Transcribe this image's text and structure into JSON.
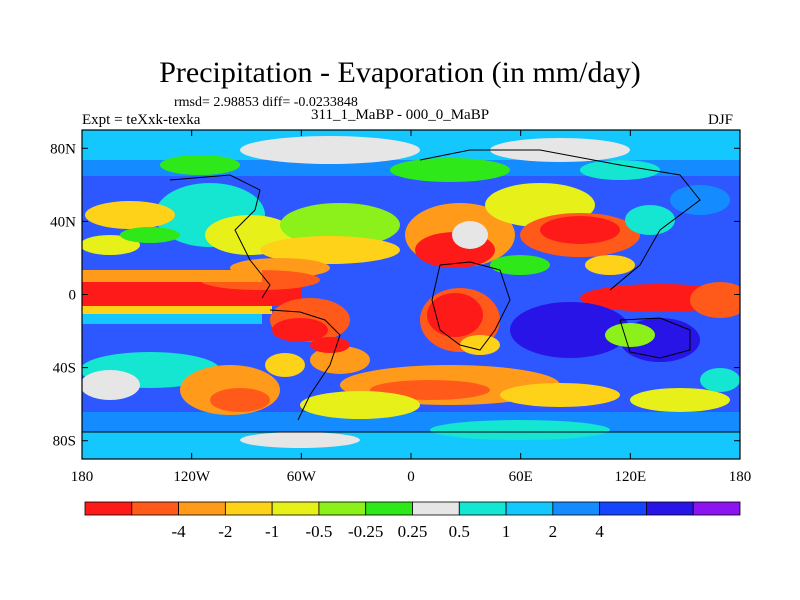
{
  "header": {
    "title": "Precipitation - Evaporation (in mm/day)",
    "stats": "rmsd= 2.98853 diff= -0.0233848",
    "experiment": "Expt = teXxk-texka",
    "subtitle": "311_1_MaBP - 000_0_MaBP",
    "season": "DJF"
  },
  "map": {
    "lon_range": [
      -180,
      180
    ],
    "lat_range": [
      -90,
      90
    ],
    "y_ticks": [
      {
        "lat": 80,
        "label": "80N"
      },
      {
        "lat": 40,
        "label": "40N"
      },
      {
        "lat": 0,
        "label": "0"
      },
      {
        "lat": -40,
        "label": "40S"
      },
      {
        "lat": -80,
        "label": "80S"
      }
    ],
    "x_ticks": [
      {
        "lon": -180,
        "label": "180"
      },
      {
        "lon": -120,
        "label": "120W"
      },
      {
        "lon": -60,
        "label": "60W"
      },
      {
        "lon": 0,
        "label": "0"
      },
      {
        "lon": 60,
        "label": "60E"
      },
      {
        "lon": 120,
        "label": "120E"
      },
      {
        "lon": 180,
        "label": "180"
      }
    ]
  },
  "colorbar": {
    "colors": [
      "#ff1a1a",
      "#ff5a1a",
      "#ff9a1a",
      "#ffd21a",
      "#e8f01a",
      "#8cf01a",
      "#2ee81a",
      "#e6e6e6",
      "#14e6d2",
      "#14c8ff",
      "#148cff",
      "#1446ff",
      "#2814e6",
      "#8c14f0"
    ],
    "labels": [
      "-4",
      "-2",
      "-1",
      "-0.5",
      "-0.25",
      "0.25",
      "0.5",
      "1",
      "2",
      "4"
    ]
  }
}
